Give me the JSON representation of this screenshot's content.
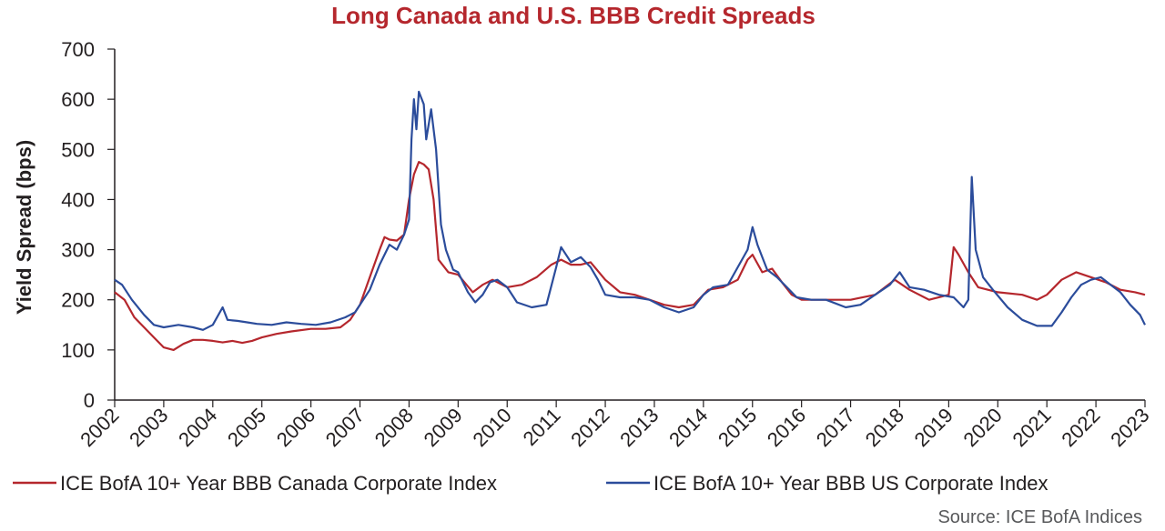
{
  "chart_data": {
    "type": "line",
    "title": "Long Canada and U.S. BBB Credit Spreads",
    "xlabel": "",
    "ylabel": "Yield Spread (bps)",
    "ylim": [
      0,
      700
    ],
    "yticks": [
      0,
      100,
      200,
      300,
      400,
      500,
      600,
      700
    ],
    "xlim": [
      2002,
      2023
    ],
    "xticks": [
      "2002",
      "2003",
      "2004",
      "2005",
      "2006",
      "2007",
      "2008",
      "2009",
      "2010",
      "2011",
      "2012",
      "2013",
      "2014",
      "2015",
      "2016",
      "2017",
      "2018",
      "2019",
      "2020",
      "2021",
      "2022",
      "2023"
    ],
    "grid": false,
    "legend_position": "bottom",
    "source": "Source: ICE BofA Indices",
    "series": [
      {
        "name": "ICE BofA 10+ Year BBB Canada Corporate Index",
        "color": "#b5272d",
        "points": [
          [
            2002.0,
            215
          ],
          [
            2002.2,
            200
          ],
          [
            2002.4,
            165
          ],
          [
            2002.6,
            145
          ],
          [
            2002.8,
            125
          ],
          [
            2003.0,
            105
          ],
          [
            2003.2,
            100
          ],
          [
            2003.4,
            112
          ],
          [
            2003.6,
            120
          ],
          [
            2003.8,
            120
          ],
          [
            2004.0,
            118
          ],
          [
            2004.2,
            115
          ],
          [
            2004.4,
            118
          ],
          [
            2004.6,
            114
          ],
          [
            2004.8,
            118
          ],
          [
            2005.0,
            125
          ],
          [
            2005.3,
            132
          ],
          [
            2005.6,
            137
          ],
          [
            2006.0,
            142
          ],
          [
            2006.3,
            142
          ],
          [
            2006.6,
            145
          ],
          [
            2006.8,
            160
          ],
          [
            2007.0,
            190
          ],
          [
            2007.2,
            245
          ],
          [
            2007.4,
            300
          ],
          [
            2007.5,
            325
          ],
          [
            2007.6,
            320
          ],
          [
            2007.75,
            318
          ],
          [
            2007.9,
            330
          ],
          [
            2008.0,
            400
          ],
          [
            2008.1,
            450
          ],
          [
            2008.2,
            475
          ],
          [
            2008.3,
            470
          ],
          [
            2008.4,
            460
          ],
          [
            2008.5,
            400
          ],
          [
            2008.6,
            280
          ],
          [
            2008.8,
            255
          ],
          [
            2009.0,
            250
          ],
          [
            2009.3,
            215
          ],
          [
            2009.5,
            230
          ],
          [
            2009.7,
            240
          ],
          [
            2010.0,
            225
          ],
          [
            2010.3,
            230
          ],
          [
            2010.6,
            245
          ],
          [
            2010.9,
            270
          ],
          [
            2011.1,
            280
          ],
          [
            2011.3,
            270
          ],
          [
            2011.5,
            270
          ],
          [
            2011.7,
            275
          ],
          [
            2012.0,
            240
          ],
          [
            2012.3,
            215
          ],
          [
            2012.6,
            210
          ],
          [
            2012.9,
            200
          ],
          [
            2013.2,
            190
          ],
          [
            2013.5,
            185
          ],
          [
            2013.8,
            190
          ],
          [
            2014.1,
            220
          ],
          [
            2014.4,
            225
          ],
          [
            2014.7,
            240
          ],
          [
            2014.9,
            280
          ],
          [
            2015.0,
            290
          ],
          [
            2015.2,
            255
          ],
          [
            2015.4,
            262
          ],
          [
            2015.6,
            235
          ],
          [
            2015.8,
            210
          ],
          [
            2016.0,
            200
          ],
          [
            2016.5,
            200
          ],
          [
            2017.0,
            200
          ],
          [
            2017.5,
            210
          ],
          [
            2017.9,
            240
          ],
          [
            2018.2,
            220
          ],
          [
            2018.6,
            200
          ],
          [
            2019.0,
            210
          ],
          [
            2019.1,
            305
          ],
          [
            2019.2,
            290
          ],
          [
            2019.4,
            255
          ],
          [
            2019.6,
            225
          ],
          [
            2020.0,
            215
          ],
          [
            2020.5,
            210
          ],
          [
            2020.8,
            200
          ],
          [
            2021.0,
            210
          ],
          [
            2021.3,
            240
          ],
          [
            2021.6,
            255
          ],
          [
            2021.9,
            245
          ],
          [
            2022.2,
            235
          ],
          [
            2022.5,
            220
          ],
          [
            2022.8,
            215
          ],
          [
            2023.0,
            210
          ]
        ]
      },
      {
        "name": "ICE BofA 10+ Year BBB US Corporate Index",
        "color": "#2b4c9b",
        "points": [
          [
            2002.0,
            240
          ],
          [
            2002.15,
            230
          ],
          [
            2002.35,
            200
          ],
          [
            2002.6,
            170
          ],
          [
            2002.8,
            150
          ],
          [
            2003.0,
            145
          ],
          [
            2003.3,
            150
          ],
          [
            2003.6,
            145
          ],
          [
            2003.8,
            140
          ],
          [
            2004.0,
            150
          ],
          [
            2004.2,
            185
          ],
          [
            2004.3,
            160
          ],
          [
            2004.5,
            158
          ],
          [
            2004.7,
            155
          ],
          [
            2004.9,
            152
          ],
          [
            2005.2,
            150
          ],
          [
            2005.5,
            155
          ],
          [
            2005.8,
            152
          ],
          [
            2006.1,
            150
          ],
          [
            2006.4,
            155
          ],
          [
            2006.7,
            165
          ],
          [
            2006.9,
            175
          ],
          [
            2007.2,
            220
          ],
          [
            2007.4,
            270
          ],
          [
            2007.6,
            310
          ],
          [
            2007.75,
            300
          ],
          [
            2007.9,
            330
          ],
          [
            2008.0,
            360
          ],
          [
            2008.05,
            520
          ],
          [
            2008.1,
            600
          ],
          [
            2008.15,
            540
          ],
          [
            2008.2,
            615
          ],
          [
            2008.3,
            590
          ],
          [
            2008.35,
            520
          ],
          [
            2008.45,
            580
          ],
          [
            2008.55,
            500
          ],
          [
            2008.65,
            350
          ],
          [
            2008.75,
            300
          ],
          [
            2008.9,
            260
          ],
          [
            2009.0,
            255
          ],
          [
            2009.2,
            215
          ],
          [
            2009.35,
            195
          ],
          [
            2009.5,
            210
          ],
          [
            2009.65,
            235
          ],
          [
            2009.8,
            240
          ],
          [
            2010.0,
            225
          ],
          [
            2010.2,
            195
          ],
          [
            2010.5,
            185
          ],
          [
            2010.8,
            190
          ],
          [
            2011.0,
            265
          ],
          [
            2011.1,
            305
          ],
          [
            2011.3,
            275
          ],
          [
            2011.5,
            285
          ],
          [
            2011.7,
            265
          ],
          [
            2011.85,
            240
          ],
          [
            2012.0,
            210
          ],
          [
            2012.3,
            205
          ],
          [
            2012.6,
            205
          ],
          [
            2012.9,
            200
          ],
          [
            2013.2,
            185
          ],
          [
            2013.5,
            175
          ],
          [
            2013.8,
            185
          ],
          [
            2014.0,
            210
          ],
          [
            2014.2,
            225
          ],
          [
            2014.5,
            230
          ],
          [
            2014.7,
            265
          ],
          [
            2014.9,
            300
          ],
          [
            2015.0,
            345
          ],
          [
            2015.1,
            310
          ],
          [
            2015.3,
            260
          ],
          [
            2015.5,
            245
          ],
          [
            2015.7,
            225
          ],
          [
            2015.9,
            205
          ],
          [
            2016.2,
            200
          ],
          [
            2016.5,
            200
          ],
          [
            2016.9,
            185
          ],
          [
            2017.2,
            190
          ],
          [
            2017.5,
            210
          ],
          [
            2017.8,
            230
          ],
          [
            2018.0,
            255
          ],
          [
            2018.2,
            225
          ],
          [
            2018.5,
            220
          ],
          [
            2018.8,
            210
          ],
          [
            2019.1,
            205
          ],
          [
            2019.3,
            185
          ],
          [
            2019.4,
            200
          ],
          [
            2019.47,
            445
          ],
          [
            2019.55,
            300
          ],
          [
            2019.7,
            245
          ],
          [
            2019.9,
            220
          ],
          [
            2020.2,
            185
          ],
          [
            2020.5,
            160
          ],
          [
            2020.8,
            148
          ],
          [
            2021.1,
            148
          ],
          [
            2021.3,
            175
          ],
          [
            2021.5,
            205
          ],
          [
            2021.7,
            230
          ],
          [
            2021.9,
            240
          ],
          [
            2022.1,
            245
          ],
          [
            2022.3,
            230
          ],
          [
            2022.5,
            215
          ],
          [
            2022.7,
            190
          ],
          [
            2022.9,
            170
          ],
          [
            2023.0,
            150
          ]
        ]
      }
    ]
  }
}
